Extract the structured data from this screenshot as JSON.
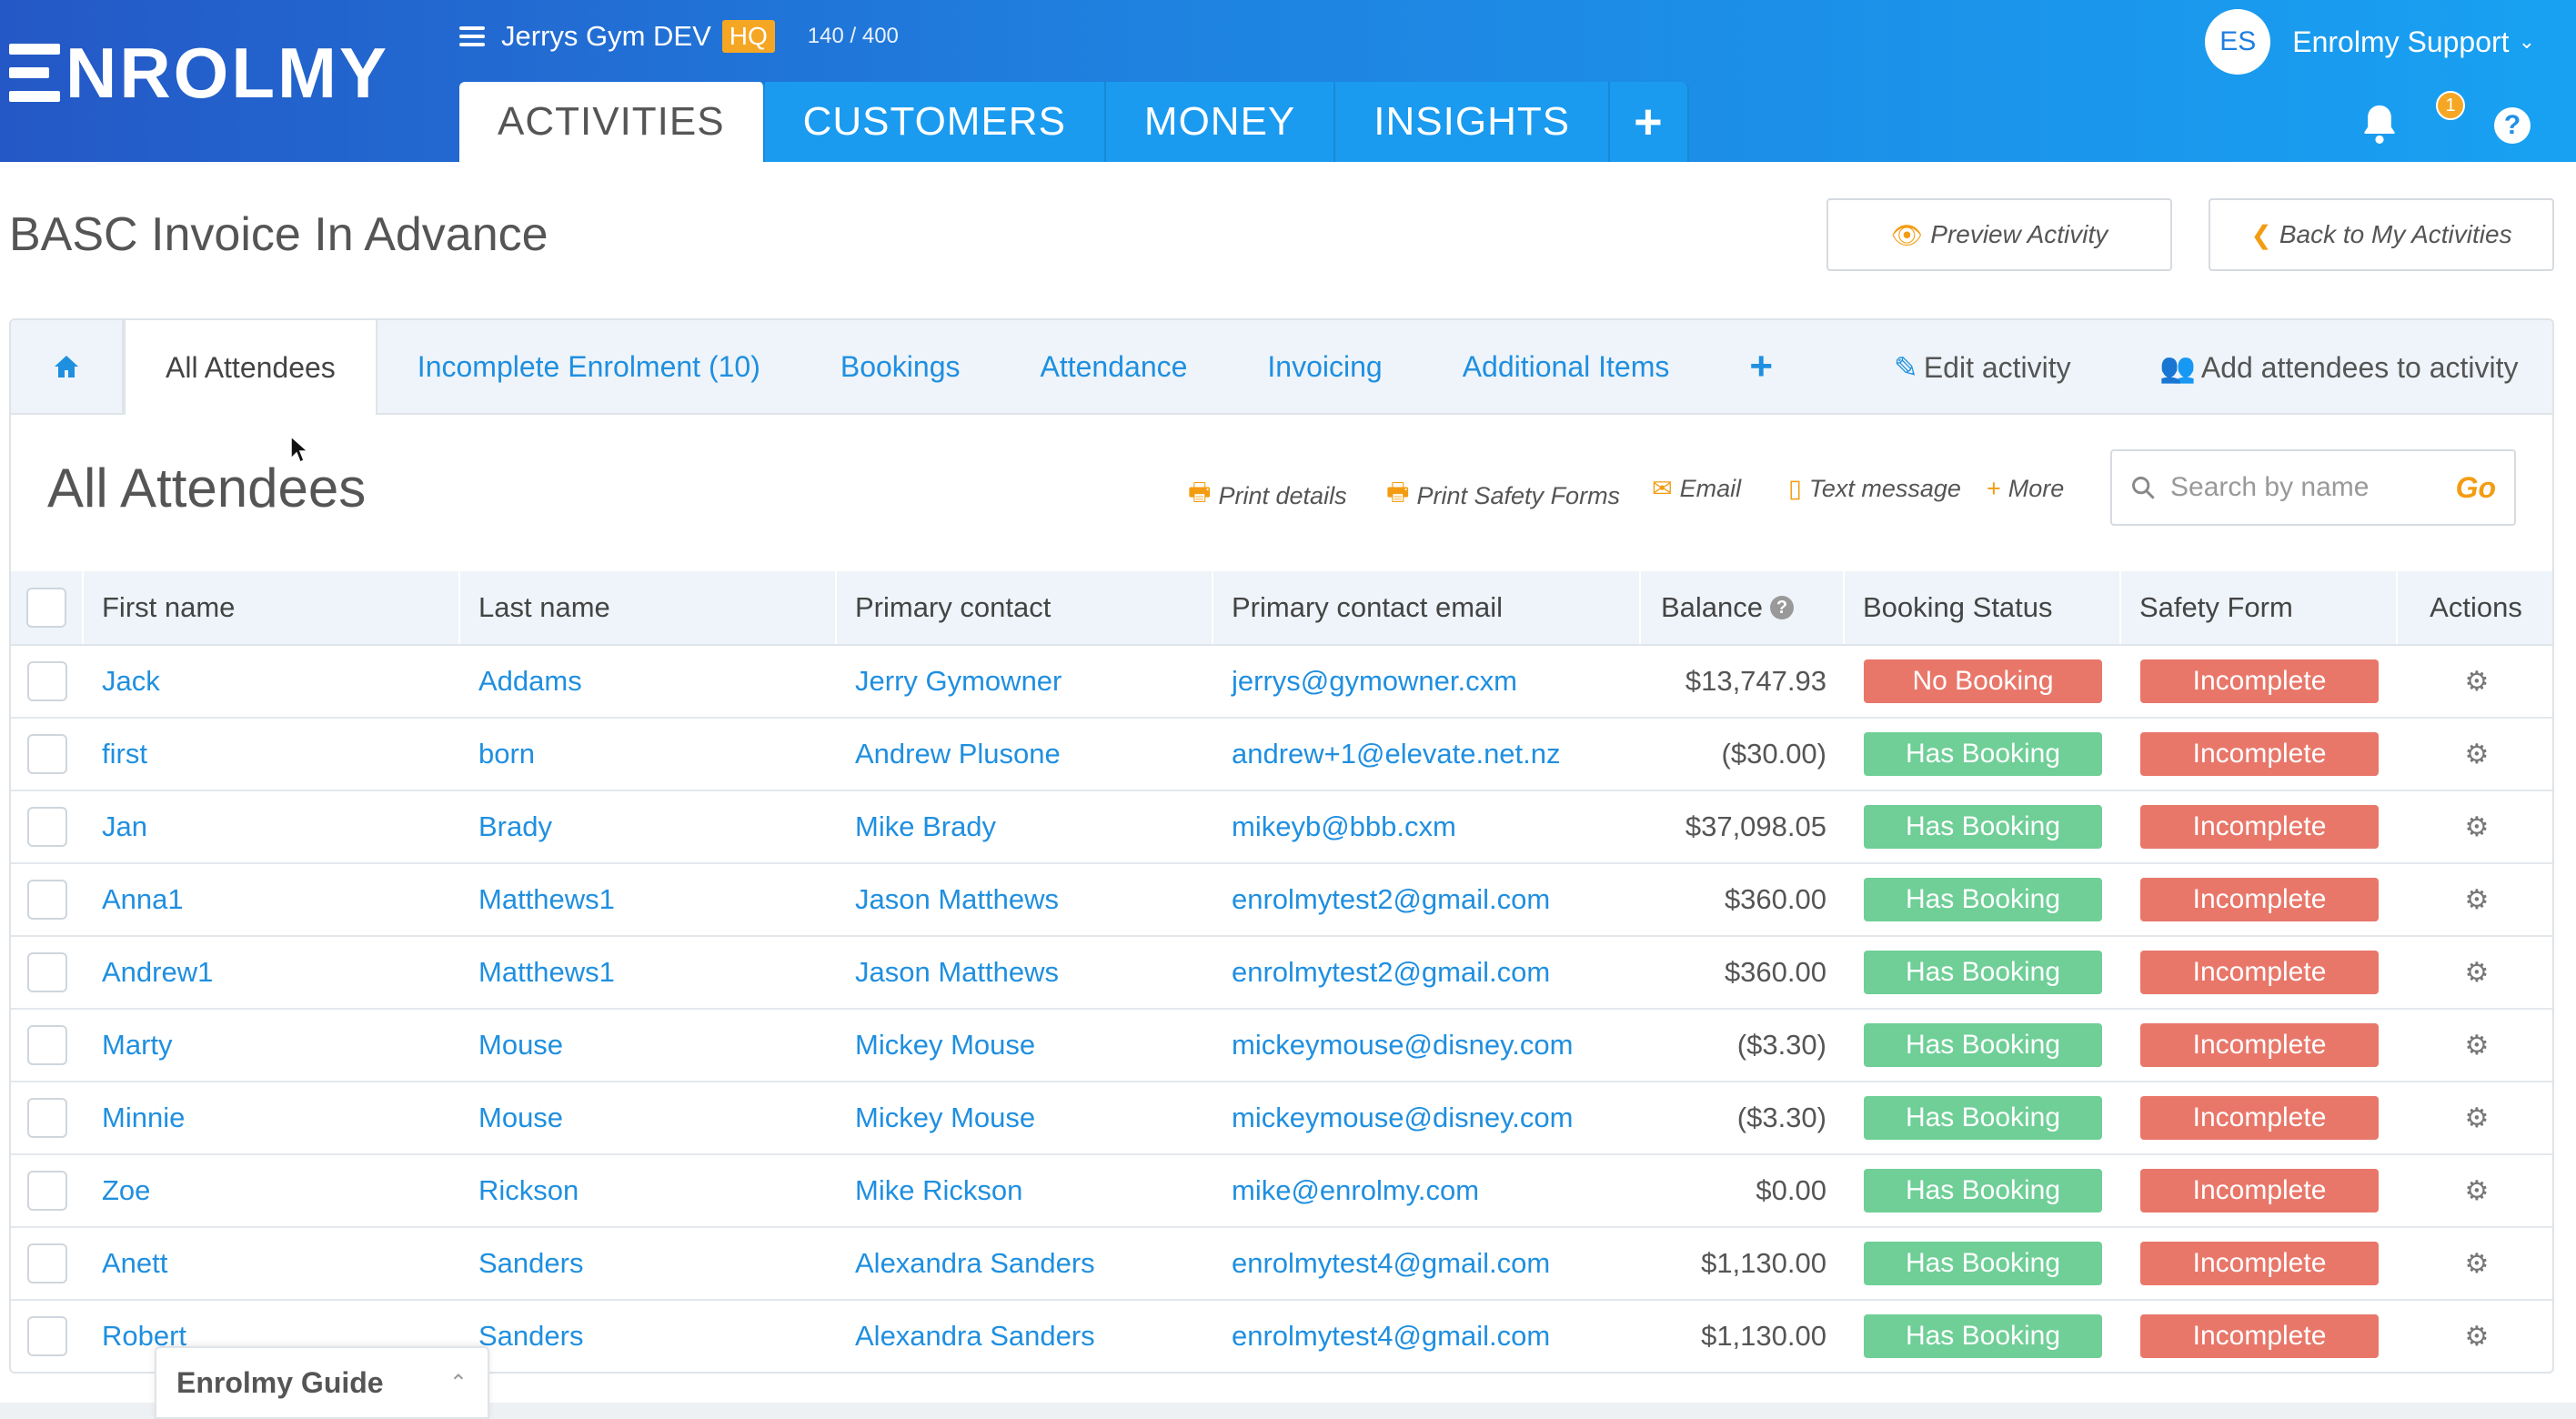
{
  "brand": {
    "logo_text": "NROLMY"
  },
  "gym": {
    "name": "Jerrys Gym DEV",
    "badge": "HQ",
    "count": "140 / 400"
  },
  "main_tabs": [
    "ACTIVITIES",
    "CUSTOMERS",
    "MONEY",
    "INSIGHTS"
  ],
  "user": {
    "initials": "ES",
    "name": "Enrolmy Support",
    "notifications": "1",
    "help": "?"
  },
  "page": {
    "title": "BASC Invoice In Advance",
    "preview_label": "Preview Activity",
    "back_label": "Back to My Activities"
  },
  "subtabs": [
    "All Attendees",
    "Incomplete Enrolment (10)",
    "Bookings",
    "Attendance",
    "Invoicing",
    "Additional Items"
  ],
  "subtab_actions": {
    "edit": "Edit activity",
    "add": "Add attendees to activity"
  },
  "section": {
    "title": "All Attendees"
  },
  "toolbar": {
    "print": "Print details",
    "safety": "Print Safety Forms",
    "email": "Email",
    "text": "Text message",
    "more": "More"
  },
  "search": {
    "placeholder": "Search by name",
    "go": "Go"
  },
  "table": {
    "headers": [
      "First name",
      "Last name",
      "Primary contact",
      "Primary contact email",
      "Balance",
      "Booking Status",
      "Safety Form",
      "Actions"
    ],
    "rows": [
      {
        "first": "Jack",
        "last": "Addams",
        "contact": "Jerry Gymowner",
        "email": "jerrys@gymowner.cxm",
        "balance": "$13,747.93",
        "booking": "No Booking",
        "safety": "Incomplete"
      },
      {
        "first": "first",
        "last": "born",
        "contact": "Andrew Plusone",
        "email": "andrew+1@elevate.net.nz",
        "balance": "($30.00)",
        "booking": "Has Booking",
        "safety": "Incomplete"
      },
      {
        "first": "Jan",
        "last": "Brady",
        "contact": "Mike Brady",
        "email": "mikeyb@bbb.cxm",
        "balance": "$37,098.05",
        "booking": "Has Booking",
        "safety": "Incomplete"
      },
      {
        "first": "Anna1",
        "last": "Matthews1",
        "contact": "Jason Matthews",
        "email": "enrolmytest2@gmail.com",
        "balance": "$360.00",
        "booking": "Has Booking",
        "safety": "Incomplete"
      },
      {
        "first": "Andrew1",
        "last": "Matthews1",
        "contact": "Jason Matthews",
        "email": "enrolmytest2@gmail.com",
        "balance": "$360.00",
        "booking": "Has Booking",
        "safety": "Incomplete"
      },
      {
        "first": "Marty",
        "last": "Mouse",
        "contact": "Mickey Mouse",
        "email": "mickeymouse@disney.com",
        "balance": "($3.30)",
        "booking": "Has Booking",
        "safety": "Incomplete"
      },
      {
        "first": "Minnie",
        "last": "Mouse",
        "contact": "Mickey Mouse",
        "email": "mickeymouse@disney.com",
        "balance": "($3.30)",
        "booking": "Has Booking",
        "safety": "Incomplete"
      },
      {
        "first": "Zoe",
        "last": "Rickson",
        "contact": "Mike Rickson",
        "email": "mike@enrolmy.com",
        "balance": "$0.00",
        "booking": "Has Booking",
        "safety": "Incomplete"
      },
      {
        "first": "Anett",
        "last": "Sanders",
        "contact": "Alexandra Sanders",
        "email": "enrolmytest4@gmail.com",
        "balance": "$1,130.00",
        "booking": "Has Booking",
        "safety": "Incomplete"
      },
      {
        "first": "Robert",
        "last": "Sanders",
        "contact": "Alexandra Sanders",
        "email": "enrolmytest4@gmail.com",
        "balance": "$1,130.00",
        "booking": "Has Booking",
        "safety": "Incomplete"
      }
    ]
  },
  "guide": {
    "title": "Enrolmy Guide"
  },
  "colors": {
    "brand_blue": "#1f82e0",
    "accent_orange": "#f39c12",
    "status_green": "#6fcf97",
    "status_red": "#e8776a"
  }
}
